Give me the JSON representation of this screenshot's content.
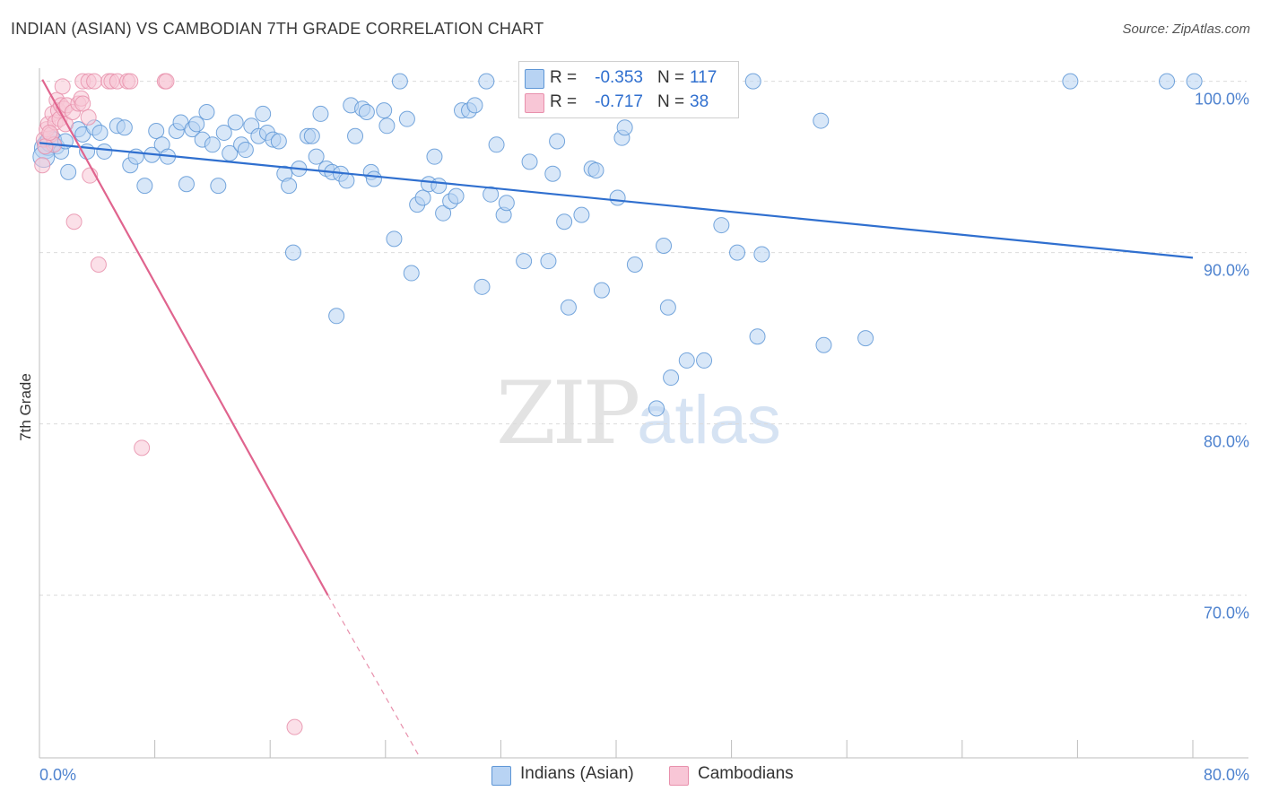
{
  "title": "INDIAN (ASIAN) VS CAMBODIAN 7TH GRADE CORRELATION CHART",
  "source": "Source: ZipAtlas.com",
  "watermark": {
    "zip": "ZIP",
    "atlas": "atlas"
  },
  "legend": {
    "r_label": "R =",
    "n_label": "N =",
    "rows": [
      {
        "r": "-0.353",
        "n": "117",
        "fill": "#b8d3f3",
        "stroke": "#5e96d6",
        "color": "#2f6fcf"
      },
      {
        "r": "-0.717",
        "n": "38",
        "fill": "#f8c6d6",
        "stroke": "#e890ac",
        "color": "#2f6fcf"
      }
    ]
  },
  "bottom_legend": [
    {
      "label": "Indians (Asian)",
      "fill": "#b8d3f3",
      "stroke": "#5e96d6"
    },
    {
      "label": "Cambodians",
      "fill": "#f8c6d6",
      "stroke": "#e890ac"
    }
  ],
  "chart_data": {
    "type": "scatter",
    "title": "INDIAN (ASIAN) VS CAMBODIAN 7TH GRADE CORRELATION CHART",
    "xlabel": "",
    "ylabel": "7th Grade",
    "xlim": [
      0,
      80
    ],
    "ylim": [
      60.5,
      101.5
    ],
    "x_tick_labels": [
      "0.0%",
      "80.0%"
    ],
    "y_ticks": [
      70,
      80,
      90,
      100
    ],
    "y_tick_labels": [
      "70.0%",
      "80.0%",
      "90.0%",
      "100.0%"
    ],
    "grid": true,
    "legend_position": "top-center",
    "series": [
      {
        "name": "Indians (Asian)",
        "color": "#5e96d6",
        "fill": "#b8d3f3",
        "trend": {
          "x": [
            0,
            80
          ],
          "y": [
            96.4,
            89.7
          ]
        },
        "points": [
          [
            0.4,
            96.1
          ],
          [
            0.6,
            96.3
          ],
          [
            0.8,
            96.5
          ],
          [
            1.0,
            96.6
          ],
          [
            1.2,
            96.2
          ],
          [
            1.5,
            95.9
          ],
          [
            1.8,
            96.5
          ],
          [
            2.0,
            94.7
          ],
          [
            2.7,
            97.2
          ],
          [
            3.0,
            96.9
          ],
          [
            3.3,
            95.9
          ],
          [
            3.8,
            97.3
          ],
          [
            4.2,
            97.0
          ],
          [
            4.5,
            95.9
          ],
          [
            5.4,
            97.4
          ],
          [
            5.9,
            97.3
          ],
          [
            6.3,
            95.1
          ],
          [
            6.7,
            95.6
          ],
          [
            7.3,
            93.9
          ],
          [
            7.8,
            95.7
          ],
          [
            8.1,
            97.1
          ],
          [
            8.5,
            96.3
          ],
          [
            8.9,
            95.6
          ],
          [
            9.5,
            97.1
          ],
          [
            9.8,
            97.6
          ],
          [
            10.2,
            94.0
          ],
          [
            10.6,
            97.2
          ],
          [
            10.9,
            97.5
          ],
          [
            11.3,
            96.6
          ],
          [
            11.6,
            98.2
          ],
          [
            12.0,
            96.3
          ],
          [
            12.4,
            93.9
          ],
          [
            12.8,
            97.0
          ],
          [
            13.2,
            95.8
          ],
          [
            13.6,
            97.6
          ],
          [
            14.0,
            96.3
          ],
          [
            14.3,
            96.0
          ],
          [
            14.7,
            97.4
          ],
          [
            15.2,
            96.8
          ],
          [
            15.5,
            98.1
          ],
          [
            15.8,
            97.0
          ],
          [
            16.2,
            96.6
          ],
          [
            16.6,
            96.5
          ],
          [
            17.0,
            94.6
          ],
          [
            17.3,
            93.9
          ],
          [
            17.6,
            90.0
          ],
          [
            18.0,
            94.9
          ],
          [
            18.6,
            96.8
          ],
          [
            18.9,
            96.8
          ],
          [
            19.2,
            95.6
          ],
          [
            19.5,
            98.1
          ],
          [
            19.9,
            94.9
          ],
          [
            20.3,
            94.7
          ],
          [
            20.6,
            86.3
          ],
          [
            20.9,
            94.6
          ],
          [
            21.3,
            94.2
          ],
          [
            21.6,
            98.6
          ],
          [
            21.9,
            96.8
          ],
          [
            22.4,
            98.4
          ],
          [
            22.7,
            98.2
          ],
          [
            23.0,
            94.7
          ],
          [
            23.2,
            94.3
          ],
          [
            23.9,
            98.3
          ],
          [
            24.1,
            97.4
          ],
          [
            24.6,
            90.8
          ],
          [
            25.0,
            100.0
          ],
          [
            25.5,
            97.8
          ],
          [
            25.8,
            88.8
          ],
          [
            26.2,
            92.8
          ],
          [
            26.6,
            93.2
          ],
          [
            27.0,
            94.0
          ],
          [
            27.4,
            95.6
          ],
          [
            27.7,
            93.9
          ],
          [
            28.0,
            92.3
          ],
          [
            28.5,
            93.0
          ],
          [
            28.9,
            93.3
          ],
          [
            29.3,
            98.3
          ],
          [
            29.8,
            98.3
          ],
          [
            30.2,
            98.6
          ],
          [
            30.7,
            88.0
          ],
          [
            31.0,
            100.0
          ],
          [
            31.3,
            93.4
          ],
          [
            31.7,
            96.3
          ],
          [
            32.2,
            92.2
          ],
          [
            32.4,
            92.9
          ],
          [
            33.6,
            89.5
          ],
          [
            34.0,
            95.3
          ],
          [
            35.3,
            89.5
          ],
          [
            35.6,
            94.6
          ],
          [
            35.9,
            96.5
          ],
          [
            36.4,
            91.8
          ],
          [
            36.7,
            86.8
          ],
          [
            37.6,
            92.2
          ],
          [
            38.3,
            94.9
          ],
          [
            38.6,
            94.8
          ],
          [
            39.0,
            87.8
          ],
          [
            40.1,
            93.2
          ],
          [
            40.4,
            96.7
          ],
          [
            40.6,
            97.3
          ],
          [
            41.3,
            89.3
          ],
          [
            43.3,
            90.4
          ],
          [
            43.6,
            86.8
          ],
          [
            43.8,
            82.7
          ],
          [
            44.0,
            100.0
          ],
          [
            44.9,
            83.7
          ],
          [
            46.1,
            83.7
          ],
          [
            47.3,
            91.6
          ],
          [
            48.4,
            90.0
          ],
          [
            49.5,
            100.0
          ],
          [
            49.8,
            85.1
          ],
          [
            50.1,
            89.9
          ],
          [
            54.2,
            97.7
          ],
          [
            54.4,
            84.6
          ],
          [
            57.3,
            85.0
          ],
          [
            42.8,
            80.9
          ],
          [
            71.5,
            100.0
          ],
          [
            78.2,
            100.0
          ],
          [
            80.1,
            100.0
          ],
          [
            0.3,
            95.6
          ]
        ]
      },
      {
        "name": "Cambodians",
        "color": "#e890ac",
        "fill": "#f8c6d6",
        "trend": {
          "x": [
            0.2,
            20.0
          ],
          "y": [
            100.1,
            70.0
          ]
        },
        "trend_dashed": {
          "x": [
            20.0,
            26.4
          ],
          "y": [
            70.0,
            60.5
          ]
        },
        "points": [
          [
            0.2,
            95.1
          ],
          [
            0.3,
            96.6
          ],
          [
            0.5,
            97.2
          ],
          [
            0.6,
            97.5
          ],
          [
            0.8,
            96.9
          ],
          [
            0.9,
            98.1
          ],
          [
            1.0,
            96.3
          ],
          [
            1.1,
            97.6
          ],
          [
            1.2,
            98.9
          ],
          [
            1.3,
            98.3
          ],
          [
            1.4,
            97.8
          ],
          [
            1.5,
            98.6
          ],
          [
            1.6,
            99.7
          ],
          [
            1.7,
            98.4
          ],
          [
            1.8,
            97.5
          ],
          [
            1.9,
            98.6
          ],
          [
            2.3,
            98.2
          ],
          [
            2.7,
            98.7
          ],
          [
            2.9,
            99.0
          ],
          [
            3.0,
            98.7
          ],
          [
            3.0,
            100.0
          ],
          [
            3.4,
            97.9
          ],
          [
            3.4,
            100.0
          ],
          [
            3.5,
            94.5
          ],
          [
            3.8,
            100.0
          ],
          [
            4.8,
            100.0
          ],
          [
            5.0,
            100.0
          ],
          [
            5.4,
            100.0
          ],
          [
            6.1,
            100.0
          ],
          [
            6.3,
            100.0
          ],
          [
            8.7,
            100.0
          ],
          [
            8.8,
            100.0
          ],
          [
            2.4,
            91.8
          ],
          [
            4.1,
            89.3
          ],
          [
            7.1,
            78.6
          ],
          [
            17.7,
            62.3
          ],
          [
            0.4,
            96.2
          ],
          [
            0.7,
            97.0
          ]
        ]
      }
    ]
  }
}
